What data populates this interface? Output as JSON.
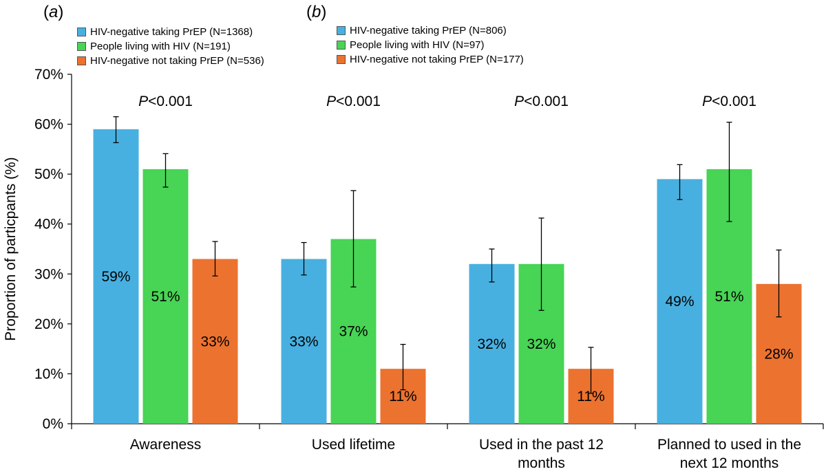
{
  "panels": {
    "a": {
      "label": "a"
    },
    "b": {
      "label": "b"
    }
  },
  "legend_a": [
    {
      "label": "HIV-negative taking PrEP (N=1368)",
      "color": "#48b0e0"
    },
    {
      "label": "People living with HIV (N=191)",
      "color": "#48d455"
    },
    {
      "label": "HIV-negative not taking PrEP (N=536)",
      "color": "#ec7230"
    }
  ],
  "legend_b": [
    {
      "label": "HIV-negative taking PrEP (N=806)",
      "color": "#48b0e0"
    },
    {
      "label": "People living with HIV (N=97)",
      "color": "#48d455"
    },
    {
      "label": "HIV-negative not taking PrEP (N=177)",
      "color": "#ec7230"
    }
  ],
  "chart_data": {
    "type": "bar",
    "ylabel": "Proportion of particpants (%)",
    "ylim": [
      0,
      70
    ],
    "yticks": [
      "0%",
      "10%",
      "20%",
      "30%",
      "40%",
      "50%",
      "60%",
      "70%"
    ],
    "categories": [
      [
        "Awareness"
      ],
      [
        "Used lifetime"
      ],
      [
        "Used in the past 12",
        "months"
      ],
      [
        "Planned to used in the",
        "next 12 months"
      ]
    ],
    "pvalues": [
      "<0.001",
      "<0.001",
      "<0.001",
      "<0.001"
    ],
    "pvalue_prefix": "P",
    "series": [
      {
        "name": "HIV-negative taking PrEP",
        "color": "#48b0e0",
        "values": [
          59,
          33,
          32,
          49
        ],
        "labels": [
          "59%",
          "33%",
          "32%",
          "49%"
        ],
        "err_low": [
          56.3,
          29.8,
          28.4,
          44.9
        ],
        "err_high": [
          61.5,
          36.3,
          35.0,
          51.9
        ]
      },
      {
        "name": "People living with HIV",
        "color": "#48d455",
        "values": [
          51,
          37,
          32,
          51
        ],
        "labels": [
          "51%",
          "37%",
          "32%",
          "51%"
        ],
        "err_low": [
          47.4,
          27.4,
          22.7,
          40.5
        ],
        "err_high": [
          54.1,
          46.7,
          41.2,
          60.4
        ]
      },
      {
        "name": "HIV-negative not taking PrEP",
        "color": "#ec7230",
        "values": [
          33,
          11,
          11,
          28
        ],
        "labels": [
          "33%",
          "11%",
          "11%",
          "28%"
        ],
        "err_low": [
          29.6,
          6.8,
          6.1,
          21.4
        ],
        "err_high": [
          36.5,
          15.9,
          15.3,
          34.8
        ]
      }
    ]
  }
}
